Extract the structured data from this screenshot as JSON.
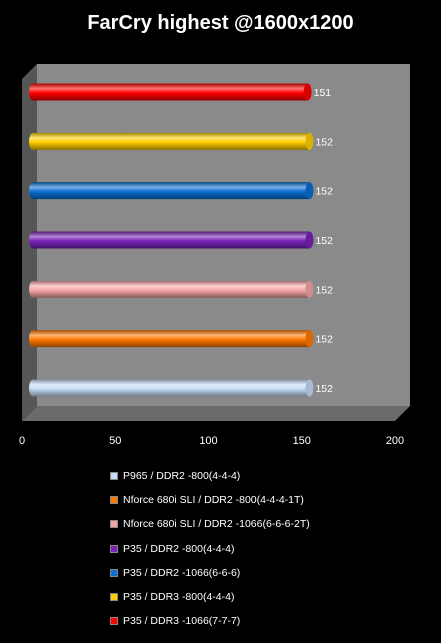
{
  "chart_data": {
    "type": "bar",
    "orientation": "horizontal",
    "title": "FarCry highest @1600x1200",
    "xlabel": "",
    "ylabel": "",
    "xlim": [
      0,
      200
    ],
    "xticks": [
      0,
      50,
      100,
      150,
      200
    ],
    "grid": false,
    "legend_position": "bottom",
    "style": "3d-cylinder",
    "series": [
      {
        "name": "P965 / DDR2 -800(4-4-4)",
        "value": 152,
        "color": "#c6dcf8"
      },
      {
        "name": "Nforce 680i SLI / DDR2 -800(4-4-4-1T)",
        "value": 152,
        "color": "#ff7a00"
      },
      {
        "name": "Nforce 680i SLI / DDR2 -1066(6-6-6-2T)",
        "value": 152,
        "color": "#f4a6a6"
      },
      {
        "name": "P35 / DDR2 -800(4-4-4)",
        "value": 152,
        "color": "#7a22b8"
      },
      {
        "name": "P35 / DDR2 -1066(6-6-6)",
        "value": 152,
        "color": "#0a6fd0"
      },
      {
        "name": "P35 / DDR3 -800(4-4-4)",
        "value": 152,
        "color": "#ffd000"
      },
      {
        "name": "P35 / DDR3 -1066(7-7-7)",
        "value": 151,
        "color": "#ff0000"
      }
    ]
  }
}
